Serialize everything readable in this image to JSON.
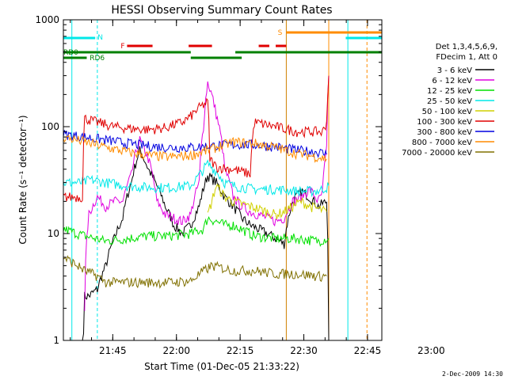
{
  "chart_data": {
    "type": "line",
    "title": "HESSI Observing Summary Count Rates",
    "xlabel": "Start Time (01-Dec-05 21:33:22)",
    "ylabel": "Count Rate (s⁻¹ detector⁻¹)",
    "yscale": "log",
    "ylim": [
      1,
      1000
    ],
    "xlim_minutes": [
      0,
      75
    ],
    "x_tick_labels": [
      "21:45",
      "22:00",
      "22:15",
      "22:30",
      "22:45",
      "23:00"
    ],
    "y_tick_labels": [
      "1",
      "10",
      "100",
      "1000"
    ],
    "timestamp": "2-Dec-2009 14:30",
    "legend": {
      "placement": "right",
      "header": [
        "Det 1,3,4,5,6,9,",
        "FDecim 1, Att 0"
      ],
      "entries": [
        {
          "label": "3 - 6 keV",
          "color": "#000000"
        },
        {
          "label": "6 - 12 keV",
          "color": "#e000e0"
        },
        {
          "label": "12 - 25 keV",
          "color": "#00e000"
        },
        {
          "label": "25 - 50 keV",
          "color": "#00e8e8"
        },
        {
          "label": "50 - 100 keV",
          "color": "#d0d000"
        },
        {
          "label": "100 - 300 keV",
          "color": "#e00000"
        },
        {
          "label": "300 - 800 keV",
          "color": "#0000e0"
        },
        {
          "label": "800 - 7000 keV",
          "color": "#ff8c00"
        },
        {
          "label": "7000 - 20000 keV",
          "color": "#807000"
        }
      ]
    },
    "flags": [
      {
        "label": "N",
        "color": "#00e8e8"
      },
      {
        "label": "F",
        "color": "#e00000"
      },
      {
        "label": "S",
        "color": "#ff8c00"
      },
      {
        "label": "RD0",
        "color": "#008000"
      },
      {
        "label": "RD6",
        "color": "#008000"
      }
    ],
    "series": [
      {
        "label_ref": 0,
        "t": [
          0,
          4.5,
          5,
          6,
          8,
          10,
          12,
          14,
          16,
          18,
          20,
          22,
          24,
          26,
          28,
          30,
          32,
          34,
          36,
          38,
          40,
          42,
          44,
          46,
          48,
          50,
          52,
          54,
          56,
          58,
          60,
          62,
          62.5
        ],
        "y": [
          0,
          0,
          2.6,
          2.6,
          3,
          5,
          9,
          14,
          30,
          60,
          40,
          28,
          18,
          12,
          10,
          12,
          18,
          35,
          30,
          22,
          18,
          14,
          12,
          11,
          10,
          9,
          8,
          20,
          25,
          22,
          18,
          20,
          0
        ]
      },
      {
        "label_ref": 1,
        "t": [
          5,
          6,
          8,
          10,
          12,
          14,
          16,
          18,
          20,
          22,
          24,
          26,
          28,
          30,
          32,
          33,
          34,
          36,
          38,
          40,
          42,
          44,
          46,
          48,
          50,
          52,
          54,
          56,
          58,
          60,
          61,
          62,
          62.5
        ],
        "y": [
          2,
          15,
          22,
          18,
          20,
          20,
          35,
          75,
          50,
          20,
          15,
          14,
          13,
          15,
          30,
          100,
          260,
          130,
          40,
          22,
          18,
          16,
          15,
          14,
          13,
          14,
          20,
          22,
          26,
          20,
          24,
          60,
          300
        ]
      },
      {
        "label_ref": 2,
        "t": [
          0,
          5,
          10,
          15,
          20,
          25,
          30,
          33,
          34,
          36,
          38,
          40,
          45,
          50,
          55,
          60,
          62,
          62.5
        ],
        "y": [
          11,
          9.5,
          8.5,
          9,
          9.5,
          9.5,
          10,
          11,
          14,
          13,
          12,
          12,
          9.5,
          9,
          9,
          8.5,
          9,
          9
        ]
      },
      {
        "label_ref": 3,
        "t": [
          0,
          5,
          6,
          10,
          15,
          20,
          25,
          30,
          32,
          34,
          36,
          38,
          40,
          45,
          50,
          55,
          60,
          62,
          62.5
        ],
        "y": [
          30,
          30,
          32,
          30,
          28,
          27,
          27,
          28,
          35,
          45,
          38,
          30,
          28,
          26,
          26,
          25,
          25,
          27,
          28
        ]
      },
      {
        "label_ref": 4,
        "t": [
          34,
          35,
          36,
          37,
          38,
          40,
          42,
          44,
          46,
          48,
          50,
          52,
          54,
          56,
          58,
          60,
          62
        ],
        "y": [
          15,
          20,
          28,
          25,
          22,
          20,
          19,
          18,
          17,
          16,
          15,
          16,
          18,
          20,
          18,
          17,
          16
        ]
      },
      {
        "label_ref": 5,
        "t": [
          0,
          4.5,
          5,
          8,
          12,
          16,
          20,
          24,
          28,
          30,
          32,
          34,
          34.5,
          36,
          40,
          44,
          45,
          50,
          55,
          60,
          61,
          62,
          62.5
        ],
        "y": [
          22,
          22,
          120,
          110,
          100,
          96,
          94,
          98,
          110,
          125,
          150,
          170,
          50,
          42,
          40,
          36,
          110,
          100,
          90,
          90,
          88,
          110,
          300
        ]
      },
      {
        "label_ref": 6,
        "t": [
          0,
          5,
          10,
          15,
          20,
          25,
          30,
          35,
          40,
          45,
          50,
          55,
          60,
          62
        ],
        "y": [
          85,
          80,
          75,
          70,
          66,
          64,
          64,
          66,
          68,
          68,
          65,
          60,
          58,
          55
        ]
      },
      {
        "label_ref": 7,
        "t": [
          0,
          5,
          10,
          15,
          20,
          25,
          30,
          35,
          40,
          45,
          50,
          55,
          60,
          62
        ],
        "y": [
          80,
          72,
          64,
          58,
          54,
          52,
          54,
          62,
          72,
          70,
          64,
          56,
          52,
          50
        ]
      },
      {
        "label_ref": 8,
        "t": [
          0,
          5,
          8,
          10,
          15,
          20,
          25,
          30,
          35,
          40,
          45,
          50,
          55,
          60,
          62
        ],
        "y": [
          6,
          4.5,
          4,
          3.5,
          3.5,
          3.5,
          3.5,
          3.6,
          5,
          4.5,
          4.5,
          4.2,
          4.2,
          4,
          4
        ]
      }
    ]
  }
}
